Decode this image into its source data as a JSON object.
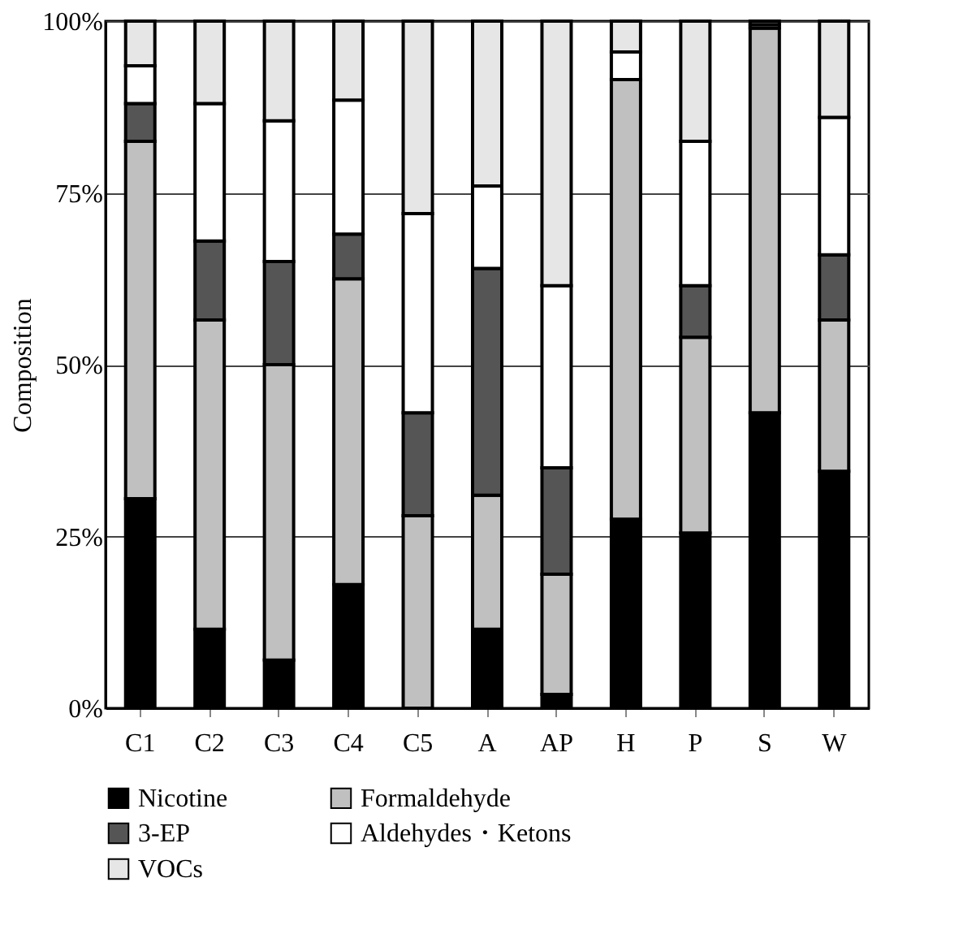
{
  "chart_data": {
    "type": "bar",
    "stacked": true,
    "ylabel": "Composition",
    "categories": [
      "C1",
      "C2",
      "C3",
      "C4",
      "C5",
      "A",
      "AP",
      "H",
      "P",
      "S",
      "W"
    ],
    "series": [
      {
        "name": "Nicotine",
        "color": "#000000",
        "values": [
          30.5,
          11.5,
          7,
          18,
          0,
          11.5,
          2,
          27.5,
          25.5,
          43,
          34.5
        ]
      },
      {
        "name": "Formaldehyde",
        "color": "#c0c0c0",
        "values": [
          52,
          45,
          43,
          44.5,
          28,
          19.5,
          17.5,
          64,
          28.5,
          56,
          22
        ]
      },
      {
        "name": "3-EP",
        "color": "#555555",
        "values": [
          5.5,
          11.5,
          15,
          6.5,
          15,
          33,
          15.5,
          0,
          7.5,
          0,
          9.5
        ]
      },
      {
        "name": "Aldehydes・Ketons",
        "color": "#ffffff",
        "values": [
          5.5,
          20,
          20.5,
          19.5,
          29,
          12,
          26.5,
          4,
          21,
          0.5,
          20
        ]
      },
      {
        "name": "VOCs",
        "color": "#e6e6e6",
        "values": [
          6.5,
          12,
          14.5,
          11.5,
          28,
          24,
          38.5,
          4.5,
          17.5,
          0.5,
          14
        ]
      }
    ],
    "ylim": [
      0,
      100
    ],
    "yticks": [
      {
        "value": 0,
        "label": "0%"
      },
      {
        "value": 25,
        "label": "25%"
      },
      {
        "value": 50,
        "label": "50%"
      },
      {
        "value": 75,
        "label": "75%"
      },
      {
        "value": 100,
        "label": "100%"
      }
    ],
    "grid": "y",
    "legend": "bottom"
  }
}
